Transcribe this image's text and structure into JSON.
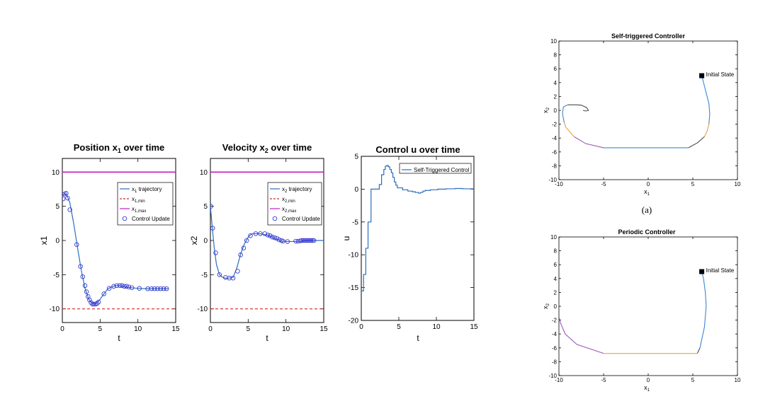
{
  "chart_data": [
    {
      "id": "pos",
      "type": "line",
      "title_main": "Position x",
      "title_sub": "1",
      "title_tail": " over time",
      "xlabel": "t",
      "ylabel": "x1",
      "xlim": [
        0,
        15
      ],
      "ylim": [
        -12,
        12
      ],
      "xticks": [
        0,
        5,
        10,
        15
      ],
      "yticks": [
        -10,
        -5,
        0,
        5,
        10
      ],
      "legend": [
        {
          "main": "x",
          "sub": "1",
          "tail": " trajectory",
          "style": "solid",
          "color": "#2a6ebf"
        },
        {
          "main": "x",
          "sub": "1,min",
          "tail": "",
          "style": "dashed",
          "color": "#d62728"
        },
        {
          "main": "x",
          "sub": "1,max",
          "tail": "",
          "style": "solid",
          "color": "#c51bc5"
        },
        {
          "main": "Control Update",
          "sub": "",
          "tail": "",
          "style": "marker",
          "color": "#3a3ad0"
        }
      ],
      "series": [
        {
          "style": "solid",
          "color": "#2a6ebf",
          "x": [
            0,
            0.3,
            0.6,
            1.0,
            1.5,
            2.0,
            2.5,
            3.0,
            3.5,
            4.0,
            4.5,
            5.0,
            5.5,
            6.0,
            6.5,
            7.0,
            7.5,
            8.0,
            8.5,
            9.0,
            10.0,
            11.0,
            12.0,
            13.0,
            14.0
          ],
          "y": [
            6.5,
            6.9,
            6.6,
            5.5,
            2.5,
            -1.0,
            -4.3,
            -7.0,
            -8.6,
            -9.3,
            -9.2,
            -8.6,
            -7.8,
            -7.1,
            -6.8,
            -6.6,
            -6.6,
            -6.7,
            -6.8,
            -6.9,
            -7.0,
            -7.05,
            -7.05,
            -7.05,
            -7.05
          ]
        },
        {
          "style": "dashed",
          "color": "#d62728",
          "x": [
            0,
            15
          ],
          "y": [
            -10,
            -10
          ]
        },
        {
          "style": "solid",
          "color": "#c51bc5",
          "x": [
            0,
            15
          ],
          "y": [
            10,
            10
          ]
        }
      ],
      "markers": {
        "x": [
          0.1,
          0.3,
          0.5,
          0.7,
          1.0,
          1.9,
          2.4,
          2.7,
          3.0,
          3.2,
          3.4,
          3.6,
          3.8,
          4.0,
          4.2,
          4.4,
          4.6,
          4.8,
          5.5,
          6.2,
          6.8,
          7.2,
          7.6,
          7.9,
          8.2,
          8.5,
          8.8,
          9.2,
          10.2,
          11.3,
          11.8,
          12.2,
          12.6,
          13.0,
          13.4,
          13.8
        ],
        "y": [
          6.1,
          6.8,
          6.9,
          6.2,
          4.5,
          -0.6,
          -3.8,
          -5.3,
          -6.6,
          -7.5,
          -8.2,
          -8.7,
          -9.1,
          -9.3,
          -9.3,
          -9.3,
          -9.2,
          -9.0,
          -7.8,
          -7.0,
          -6.7,
          -6.6,
          -6.6,
          -6.6,
          -6.7,
          -6.7,
          -6.8,
          -6.9,
          -7.0,
          -7.05,
          -7.05,
          -7.05,
          -7.05,
          -7.05,
          -7.05,
          -7.05
        ]
      }
    },
    {
      "id": "vel",
      "type": "line",
      "title_main": "Velocity x",
      "title_sub": "2",
      "title_tail": " over time",
      "xlabel": "t",
      "ylabel": "x2",
      "xlim": [
        0,
        15
      ],
      "ylim": [
        -12,
        12
      ],
      "xticks": [
        0,
        5,
        10,
        15
      ],
      "yticks": [
        -10,
        -5,
        0,
        5,
        10
      ],
      "legend": [
        {
          "main": "x",
          "sub": "2",
          "tail": " trajectory",
          "style": "solid",
          "color": "#2a6ebf"
        },
        {
          "main": "x",
          "sub": "2,min",
          "tail": "",
          "style": "dashed",
          "color": "#d62728"
        },
        {
          "main": "x",
          "sub": "2,max",
          "tail": "",
          "style": "solid",
          "color": "#c51bc5"
        },
        {
          "main": "Control Update",
          "sub": "",
          "tail": "",
          "style": "marker",
          "color": "#3a3ad0"
        }
      ],
      "series": [
        {
          "style": "solid",
          "color": "#2a6ebf",
          "x": [
            0,
            0.2,
            0.5,
            0.8,
            1.2,
            1.6,
            2.0,
            2.5,
            3.0,
            3.5,
            4.0,
            4.5,
            5.0,
            5.5,
            6.0,
            6.5,
            7.0,
            7.5,
            8.0,
            8.5,
            9.0,
            9.5,
            10.0,
            11.0,
            12.0,
            13.0,
            14.0,
            15.0
          ],
          "y": [
            5.0,
            2.5,
            -1.0,
            -3.5,
            -5.0,
            -5.4,
            -5.5,
            -5.5,
            -5.4,
            -4.0,
            -2.0,
            -0.5,
            0.5,
            1.0,
            1.0,
            1.0,
            0.9,
            0.8,
            0.6,
            0.3,
            0.1,
            -0.1,
            -0.15,
            -0.15,
            -0.1,
            0.0,
            0.0,
            0.0
          ]
        },
        {
          "style": "dashed",
          "color": "#d62728",
          "x": [
            0,
            15
          ],
          "y": [
            -10,
            -10
          ]
        },
        {
          "style": "solid",
          "color": "#c51bc5",
          "x": [
            0,
            15
          ],
          "y": [
            10,
            10
          ]
        }
      ],
      "markers": {
        "x": [
          0.05,
          0.3,
          0.7,
          1.2,
          2.0,
          2.5,
          3.0,
          3.6,
          4.0,
          4.4,
          4.8,
          5.3,
          6.0,
          6.6,
          7.2,
          7.6,
          7.9,
          8.2,
          8.5,
          8.8,
          9.1,
          9.4,
          9.6,
          10.2,
          11.3,
          11.6,
          11.9,
          12.1,
          12.3,
          12.5,
          12.7,
          12.9,
          13.1,
          13.3,
          13.5,
          13.7
        ],
        "y": [
          5.0,
          1.8,
          -1.8,
          -5.0,
          -5.4,
          -5.5,
          -5.5,
          -4.5,
          -2.1,
          -1.1,
          0.0,
          0.7,
          1.0,
          1.0,
          1.0,
          0.8,
          0.7,
          0.5,
          0.4,
          0.3,
          0.1,
          0.0,
          -0.1,
          -0.15,
          -0.1,
          -0.1,
          -0.05,
          0.0,
          0.0,
          0.0,
          0.0,
          0.0,
          0.0,
          0.0,
          0.0,
          0.0
        ]
      }
    },
    {
      "id": "ctrl",
      "type": "line",
      "title_main": "Control u over time",
      "title_sub": "",
      "title_tail": "",
      "xlabel": "t",
      "ylabel": "u",
      "xlim": [
        0,
        15
      ],
      "ylim": [
        -20,
        5
      ],
      "xticks": [
        0,
        5,
        10,
        15
      ],
      "yticks": [
        -20,
        -15,
        -10,
        -5,
        0,
        5
      ],
      "legend": [
        {
          "main": "Self-Triggered Control",
          "sub": "",
          "tail": "",
          "style": "solid",
          "color": "#2a6ebf"
        }
      ],
      "series": [
        {
          "style": "step",
          "color": "#2a6ebf",
          "x": [
            0,
            0.3,
            0.6,
            0.9,
            1.3,
            1.9,
            2.4,
            2.7,
            3.0,
            3.2,
            3.4,
            3.6,
            3.8,
            4.0,
            4.2,
            4.4,
            4.6,
            4.8,
            5.5,
            6.2,
            6.8,
            7.2,
            7.6,
            7.9,
            8.2,
            8.5,
            9.2,
            10.2,
            11.3,
            12.5,
            13.5,
            14.8
          ],
          "y": [
            -15.5,
            -13.0,
            -9.0,
            -5.0,
            0.0,
            0.0,
            0.7,
            2.2,
            3.0,
            3.5,
            3.6,
            3.4,
            3.0,
            2.5,
            1.8,
            1.1,
            0.6,
            0.2,
            -0.1,
            -0.3,
            -0.4,
            -0.5,
            -0.6,
            -0.5,
            -0.3,
            -0.2,
            -0.1,
            0.0,
            0.05,
            0.1,
            0.05,
            0.05
          ]
        }
      ]
    },
    {
      "id": "self",
      "type": "line",
      "title": "Self-triggered Controller",
      "xlabel_main": "x",
      "xlabel_sub": "1",
      "ylabel_main": "x",
      "ylabel_sub": "2",
      "xlim": [
        -10,
        10
      ],
      "ylim": [
        -10,
        10
      ],
      "xticks": [
        -10,
        -5,
        0,
        5,
        10
      ],
      "yticks": [
        -10,
        -8,
        -6,
        -4,
        -2,
        0,
        2,
        4,
        6,
        8,
        10
      ],
      "annotation": "Initial State",
      "initial_state": [
        6,
        5
      ],
      "series": [
        {
          "color": "#3b86d6",
          "x": [
            6.0,
            6.2,
            6.5,
            6.8,
            6.9,
            6.8
          ],
          "y": [
            5.0,
            4.0,
            2.5,
            1.0,
            -0.5,
            -2.0
          ]
        },
        {
          "color": "#e8a33d",
          "x": [
            6.8,
            6.6,
            6.3
          ],
          "y": [
            -2.0,
            -3.0,
            -3.8
          ]
        },
        {
          "color": "#4a4a4a",
          "x": [
            6.3,
            5.5,
            4.5
          ],
          "y": [
            -3.8,
            -4.7,
            -5.4
          ]
        },
        {
          "color": "#3b86d6",
          "x": [
            4.5,
            0.0,
            -5.0
          ],
          "y": [
            -5.4,
            -5.4,
            -5.4
          ]
        },
        {
          "color": "#9b59b6",
          "x": [
            -5.0,
            -7.0,
            -8.3
          ],
          "y": [
            -5.4,
            -4.8,
            -3.8
          ]
        },
        {
          "color": "#e8a33d",
          "x": [
            -8.3,
            -9.2,
            -9.4
          ],
          "y": [
            -3.8,
            -2.5,
            -1.8
          ]
        },
        {
          "color": "#3b86d6",
          "x": [
            -9.4,
            -9.6,
            -9.5,
            -9.0
          ],
          "y": [
            -1.8,
            -0.5,
            0.5,
            0.8
          ]
        },
        {
          "color": "#4a4a4a",
          "x": [
            -9.0,
            -8.0,
            -7.5,
            -6.9,
            -6.7,
            -7.0,
            -7.3
          ],
          "y": [
            0.8,
            0.8,
            0.75,
            0.4,
            0.0,
            -0.1,
            0.0
          ]
        }
      ]
    },
    {
      "id": "per",
      "type": "line",
      "title": "Periodic Controller",
      "xlabel_main": "x",
      "xlabel_sub": "1",
      "ylabel_main": "x",
      "ylabel_sub": "2",
      "xlim": [
        -10,
        10
      ],
      "ylim": [
        -10,
        10
      ],
      "xticks": [
        -10,
        -5,
        0,
        5,
        10
      ],
      "yticks": [
        -10,
        -8,
        -6,
        -4,
        -2,
        0,
        2,
        4,
        6,
        8,
        10
      ],
      "annotation": "Initial State",
      "initial_state": [
        6,
        5
      ],
      "series": [
        {
          "color": "#3b86d6",
          "x": [
            6.0,
            6.2,
            6.4,
            6.5,
            6.3,
            5.8
          ],
          "y": [
            5.0,
            4.0,
            2.0,
            0.0,
            -3.0,
            -6.0
          ]
        },
        {
          "color": "#4a4a4a",
          "x": [
            5.8,
            5.5
          ],
          "y": [
            -6.0,
            -6.8
          ]
        },
        {
          "color": "#e8a33d",
          "x": [
            5.5,
            0.0,
            -5.0
          ],
          "y": [
            -6.8,
            -6.8,
            -6.8
          ]
        },
        {
          "color": "#9b59b6",
          "x": [
            -5.0,
            -8.0,
            -9.3,
            -9.8,
            -10.0
          ],
          "y": [
            -6.8,
            -5.5,
            -4.0,
            -2.5,
            -1.5
          ]
        }
      ]
    }
  ],
  "caption": "(a)"
}
